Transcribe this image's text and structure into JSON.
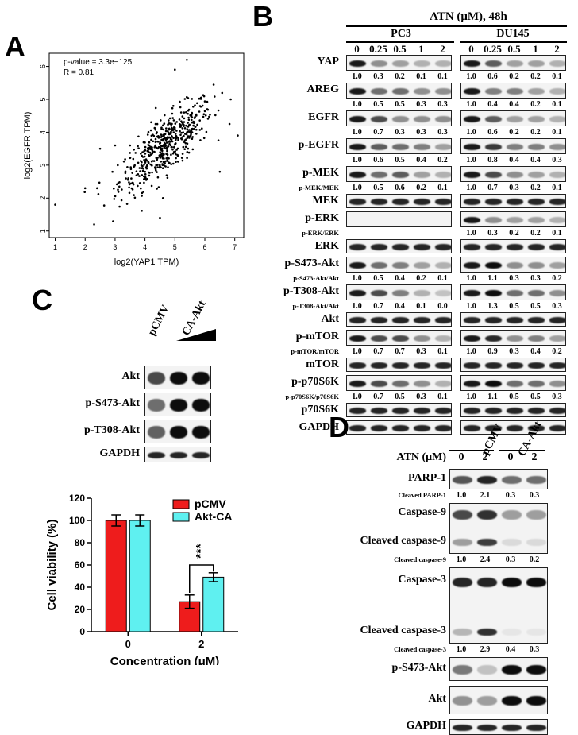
{
  "panels": {
    "a": "A",
    "b": "B",
    "c": "C",
    "d": "D"
  },
  "panelA": {
    "annot_p": "p-value = 3.3e−125",
    "annot_r": "R = 0.81",
    "xlabel": "log2(YAP1 TPM)",
    "ylabel": "log2(EGFR TPM)",
    "xticks": [
      "1",
      "2",
      "3",
      "4",
      "5",
      "6",
      "7"
    ],
    "yticks": [
      "1",
      "2",
      "3",
      "4",
      "5",
      "6"
    ]
  },
  "panelB": {
    "title": "ATN (μM), 48h",
    "line1": "PC3",
    "line2": "DU145",
    "doses": [
      "0",
      "0.25",
      "0.5",
      "1",
      "2"
    ],
    "rows": [
      {
        "label": "YAP",
        "q": [
          "1.0",
          "0.3",
          "0.2",
          "0.1",
          "0.1",
          "1.0",
          "0.6",
          "0.2",
          "0.2",
          "0.1"
        ]
      },
      {
        "label": "AREG",
        "q": [
          "1.0",
          "0.5",
          "0.5",
          "0.3",
          "0.3",
          "1.0",
          "0.4",
          "0.4",
          "0.2",
          "0.1"
        ]
      },
      {
        "label": "EGFR",
        "q": [
          "1.0",
          "0.7",
          "0.3",
          "0.3",
          "0.3",
          "1.0",
          "0.6",
          "0.2",
          "0.2",
          "0.1"
        ]
      },
      {
        "label": "p-EGFR",
        "q": [
          "1.0",
          "0.6",
          "0.5",
          "0.4",
          "0.2",
          "1.0",
          "0.8",
          "0.4",
          "0.4",
          "0.3"
        ]
      },
      {
        "label": "p-MEK",
        "qlabel": "p-MEK/MEK",
        "q": [
          "1.0",
          "0.5",
          "0.6",
          "0.2",
          "0.1",
          "1.0",
          "0.7",
          "0.3",
          "0.2",
          "0.1"
        ]
      },
      {
        "label": "MEK"
      },
      {
        "label": "p-ERK",
        "qlabel": "p-ERK/ERK",
        "q": [
          "",
          "",
          "",
          "",
          "",
          "1.0",
          "0.3",
          "0.2",
          "0.2",
          "0.1"
        ]
      },
      {
        "label": "ERK"
      },
      {
        "label": "p-S473-Akt",
        "qlabel": "p-S473-Akt/Akt",
        "q": [
          "1.0",
          "0.5",
          "0.4",
          "0.2",
          "0.1",
          "1.0",
          "1.1",
          "0.3",
          "0.3",
          "0.2"
        ]
      },
      {
        "label": "p-T308-Akt",
        "qlabel": "p-T308-Akt/Akt",
        "q": [
          "1.0",
          "0.7",
          "0.4",
          "0.1",
          "0.0",
          "1.0",
          "1.3",
          "0.5",
          "0.5",
          "0.3"
        ]
      },
      {
        "label": "Akt"
      },
      {
        "label": "p-mTOR",
        "qlabel": "p-mTOR/mTOR",
        "q": [
          "1.0",
          "0.7",
          "0.7",
          "0.3",
          "0.1",
          "1.0",
          "0.9",
          "0.3",
          "0.4",
          "0.2"
        ]
      },
      {
        "label": "mTOR"
      },
      {
        "label": "p-p70S6K",
        "qlabel": "p-p70S6K/p70S6K",
        "q": [
          "1.0",
          "0.7",
          "0.5",
          "0.3",
          "0.1",
          "1.0",
          "1.1",
          "0.5",
          "0.5",
          "0.3"
        ]
      },
      {
        "label": "p70S6K"
      },
      {
        "label": "GAPDH"
      }
    ]
  },
  "panelC": {
    "lanes": [
      "pCMV",
      "CA-Akt"
    ],
    "rows": [
      "Akt",
      "p-S473-Akt",
      "p-T308-Akt",
      "GAPDH"
    ],
    "significance": "***"
  },
  "panelD": {
    "lanes": [
      "pCMV",
      "CA-Akt"
    ],
    "atn_label": "ATN (μM)",
    "doses": [
      "0",
      "2",
      "0",
      "2"
    ],
    "rows": [
      "PARP-1",
      "Caspase-9",
      "Cleaved caspase-9",
      "Caspase-3",
      "Cleaved caspase-3",
      "p-S473-Akt",
      "Akt",
      "GAPDH"
    ],
    "quant": [
      {
        "label": "Cleaved PARP-1",
        "q": [
          "1.0",
          "2.1",
          "0.3",
          "0.3"
        ]
      },
      {
        "label": "Cleaved caspase-9",
        "q": [
          "1.0",
          "2.4",
          "0.3",
          "0.2"
        ]
      },
      {
        "label": "Cleaved caspase-3",
        "q": [
          "1.0",
          "2.9",
          "0.4",
          "0.3"
        ]
      }
    ]
  },
  "chart_data": [
    {
      "type": "scatter",
      "title": "",
      "xlabel": "log2(YAP1 TPM)",
      "ylabel": "log2(EGFR TPM)",
      "xlim": [
        0.8,
        7.3
      ],
      "ylim": [
        0.8,
        6.4
      ],
      "annotations": [
        "p-value = 3.3e−125",
        "R = 0.81"
      ],
      "n_points": 520,
      "trend": {
        "center_x": 4.7,
        "center_y": 3.6,
        "slope": 0.7
      },
      "outliers": [
        [
          1.0,
          1.8
        ],
        [
          2.0,
          2.3
        ],
        [
          2.3,
          1.2
        ],
        [
          2.4,
          2.3
        ],
        [
          2.5,
          3.5
        ],
        [
          3.0,
          3.6
        ],
        [
          3.5,
          3.6
        ],
        [
          4.5,
          1.4
        ],
        [
          4.6,
          2.0
        ],
        [
          5.4,
          6.2
        ],
        [
          6.5,
          2.8
        ],
        [
          7.1,
          3.9
        ],
        [
          5.0,
          5.9
        ]
      ]
    },
    {
      "type": "bar",
      "title": "",
      "xlabel": "Concentration (μM)",
      "ylabel": "Cell viability (%)",
      "categories": [
        "0",
        "2"
      ],
      "ylim": [
        0,
        120
      ],
      "yticks": [
        0,
        20,
        40,
        60,
        80,
        100,
        120
      ],
      "series": [
        {
          "name": "pCMV",
          "values": [
            100,
            27
          ],
          "errors": [
            5,
            6
          ],
          "color": "#ee1c1c"
        },
        {
          "name": "Akt-CA",
          "values": [
            100,
            49
          ],
          "errors": [
            5,
            4
          ],
          "color": "#5ff0f0"
        }
      ],
      "legend": "top-right"
    }
  ]
}
